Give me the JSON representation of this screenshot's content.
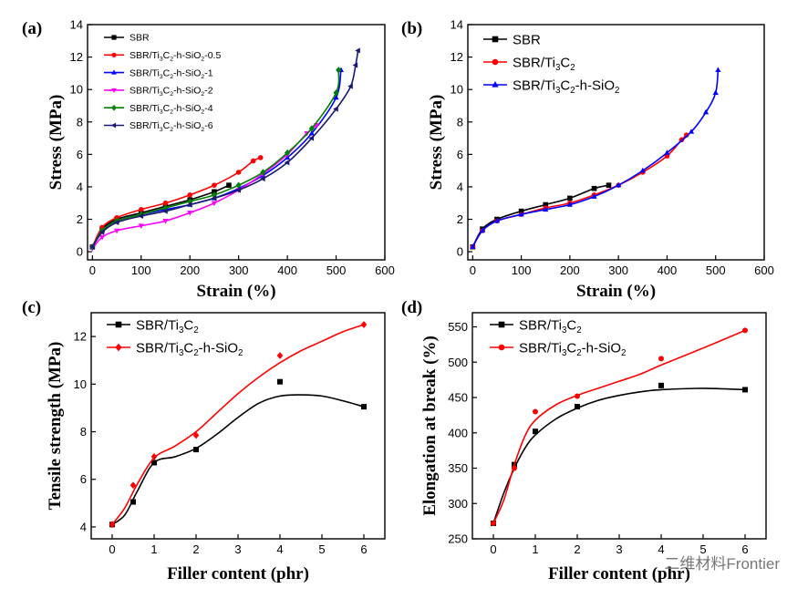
{
  "chart_data": [
    {
      "id": "a",
      "type": "line",
      "panel_label": "(a)",
      "xlabel": "Strain (%)",
      "ylabel": "Stress (MPa)",
      "xlim": [
        -10,
        600
      ],
      "ylim": [
        -0.5,
        14
      ],
      "xticks": [
        0,
        100,
        200,
        300,
        400,
        500,
        600
      ],
      "yticks": [
        0,
        2,
        4,
        6,
        8,
        10,
        12,
        14
      ],
      "legend_position": "top-left",
      "series": [
        {
          "name": "SBR",
          "color": "#000000",
          "marker": "square",
          "x": [
            0,
            20,
            50,
            100,
            150,
            200,
            250,
            280
          ],
          "y": [
            0.3,
            1.4,
            2.0,
            2.4,
            2.8,
            3.2,
            3.7,
            4.1
          ]
        },
        {
          "name": "SBR/Ti₃C₂-h-SiO₂-0.5",
          "color": "#ff0000",
          "marker": "circle",
          "x": [
            0,
            20,
            50,
            100,
            150,
            200,
            250,
            300,
            330,
            345
          ],
          "y": [
            0.3,
            1.5,
            2.1,
            2.6,
            3.0,
            3.5,
            4.1,
            4.9,
            5.6,
            5.8
          ]
        },
        {
          "name": "SBR/Ti₃C₂-h-SiO₂-1",
          "color": "#0000ff",
          "marker": "triangle-up",
          "x": [
            0,
            20,
            50,
            100,
            150,
            200,
            250,
            300,
            350,
            400,
            450,
            500,
            510
          ],
          "y": [
            0.3,
            1.3,
            1.9,
            2.3,
            2.6,
            2.9,
            3.3,
            3.9,
            4.7,
            5.8,
            7.3,
            9.5,
            11.2
          ]
        },
        {
          "name": "SBR/Ti₃C₂-h-SiO₂-2",
          "color": "#ff00ff",
          "marker": "triangle-down",
          "x": [
            0,
            20,
            50,
            100,
            150,
            200,
            250,
            300,
            350,
            400,
            440,
            460
          ],
          "y": [
            0.2,
            0.9,
            1.3,
            1.6,
            1.9,
            2.4,
            3.0,
            3.8,
            4.8,
            6.0,
            7.3,
            7.8
          ]
        },
        {
          "name": "SBR/Ti₃C₂-h-SiO₂-4",
          "color": "#008000",
          "marker": "diamond",
          "x": [
            0,
            20,
            50,
            100,
            150,
            200,
            250,
            300,
            350,
            400,
            450,
            500,
            505
          ],
          "y": [
            0.3,
            1.3,
            1.9,
            2.3,
            2.7,
            3.1,
            3.5,
            4.1,
            4.9,
            6.1,
            7.6,
            9.8,
            11.2
          ]
        },
        {
          "name": "SBR/Ti₃C₂-h-SiO₂-6",
          "color": "#191970",
          "marker": "triangle-left",
          "x": [
            0,
            20,
            50,
            100,
            150,
            200,
            250,
            300,
            350,
            400,
            450,
            500,
            530,
            540,
            545
          ],
          "y": [
            0.3,
            1.2,
            1.8,
            2.2,
            2.5,
            2.9,
            3.3,
            3.8,
            4.5,
            5.5,
            7.0,
            8.8,
            10.2,
            11.5,
            12.4
          ]
        }
      ]
    },
    {
      "id": "b",
      "type": "line",
      "panel_label": "(b)",
      "xlabel": "Strain (%)",
      "ylabel": "Stress (MPa)",
      "xlim": [
        -10,
        600
      ],
      "ylim": [
        -0.5,
        14
      ],
      "xticks": [
        0,
        100,
        200,
        300,
        400,
        500,
        600
      ],
      "yticks": [
        0,
        2,
        4,
        6,
        8,
        10,
        12,
        14
      ],
      "legend_position": "top-left",
      "series": [
        {
          "name": "SBR",
          "color": "#000000",
          "marker": "square",
          "x": [
            0,
            20,
            50,
            100,
            150,
            200,
            250,
            280
          ],
          "y": [
            0.3,
            1.4,
            2.0,
            2.5,
            2.9,
            3.3,
            3.9,
            4.1
          ]
        },
        {
          "name": "SBR/Ti₃C₂",
          "color": "#ff0000",
          "marker": "circle",
          "x": [
            0,
            20,
            50,
            100,
            150,
            200,
            250,
            300,
            350,
            400,
            430,
            440
          ],
          "y": [
            0.3,
            1.3,
            1.9,
            2.3,
            2.7,
            3.0,
            3.5,
            4.1,
            4.9,
            5.9,
            6.9,
            7.2
          ]
        },
        {
          "name": "SBR/Ti₃C₂-h-SiO₂",
          "color": "#0000ff",
          "marker": "triangle-up",
          "x": [
            0,
            20,
            50,
            100,
            150,
            200,
            250,
            300,
            350,
            400,
            450,
            480,
            500,
            505
          ],
          "y": [
            0.3,
            1.3,
            1.9,
            2.3,
            2.6,
            2.9,
            3.4,
            4.1,
            5.0,
            6.1,
            7.4,
            8.6,
            9.8,
            11.2
          ]
        }
      ]
    },
    {
      "id": "c",
      "type": "scatter",
      "panel_label": "(c)",
      "xlabel": "Filler content (phr)",
      "ylabel": "Tensile strength (MPa)",
      "xlim": [
        -0.5,
        6.5
      ],
      "ylim": [
        3.5,
        13.0
      ],
      "xticks": [
        0,
        1,
        2,
        3,
        4,
        5,
        6
      ],
      "yticks": [
        4,
        6,
        8,
        10,
        12
      ],
      "legend_position": "top-left",
      "series": [
        {
          "name": "SBR/Ti₃C₂",
          "color": "#000000",
          "marker": "square",
          "x": [
            0,
            0.5,
            1,
            2,
            4,
            6
          ],
          "y": [
            4.1,
            5.05,
            6.7,
            7.25,
            10.1,
            9.05
          ],
          "fit_x": [
            0,
            0.3,
            0.6,
            1,
            1.5,
            2,
            2.5,
            3,
            3.5,
            4,
            4.5,
            5,
            5.5,
            6
          ],
          "fit_y": [
            4.1,
            4.5,
            5.5,
            6.7,
            6.95,
            7.3,
            7.9,
            8.6,
            9.2,
            9.5,
            9.55,
            9.5,
            9.3,
            9.05
          ]
        },
        {
          "name": "SBR/Ti₃C₂-h-SiO₂",
          "color": "#ff0000",
          "marker": "diamond",
          "x": [
            0,
            0.5,
            1,
            2,
            4,
            6
          ],
          "y": [
            4.1,
            5.75,
            6.95,
            7.85,
            11.2,
            12.5
          ],
          "fit_x": [
            0,
            0.3,
            0.6,
            1,
            1.5,
            2,
            2.5,
            3,
            3.5,
            4,
            4.5,
            5,
            5.5,
            6
          ],
          "fit_y": [
            4.1,
            4.8,
            5.8,
            6.9,
            7.4,
            8.0,
            8.8,
            9.6,
            10.3,
            10.9,
            11.4,
            11.8,
            12.2,
            12.5
          ]
        }
      ]
    },
    {
      "id": "d",
      "type": "scatter",
      "panel_label": "(d)",
      "xlabel": "Filler content (phr)",
      "ylabel": "Elongation at break (%)",
      "xlim": [
        -0.5,
        6.5
      ],
      "ylim": [
        250,
        570
      ],
      "xticks": [
        0,
        1,
        2,
        3,
        4,
        5,
        6
      ],
      "yticks": [
        250,
        300,
        350,
        400,
        450,
        500,
        550
      ],
      "legend_position": "top-left",
      "series": [
        {
          "name": "SBR/Ti₃C₂",
          "color": "#000000",
          "marker": "square",
          "x": [
            0,
            0.5,
            1,
            2,
            4,
            6
          ],
          "y": [
            272,
            355,
            402,
            437,
            467,
            461
          ],
          "fit_x": [
            0,
            0.25,
            0.5,
            0.75,
            1,
            1.5,
            2,
            2.5,
            3,
            3.5,
            4,
            5,
            6
          ],
          "fit_y": [
            272,
            315,
            350,
            378,
            397,
            420,
            435,
            446,
            453,
            458,
            461,
            463,
            461
          ]
        },
        {
          "name": "SBR/Ti₃C₂-h-SiO₂",
          "color": "#ff0000",
          "marker": "circle",
          "x": [
            0,
            0.5,
            1,
            2,
            4,
            6
          ],
          "y": [
            272,
            350,
            430,
            452,
            505,
            545
          ],
          "fit_x": [
            0,
            0.25,
            0.5,
            0.75,
            1,
            1.5,
            2,
            2.5,
            3,
            3.5,
            4,
            5,
            6
          ],
          "fit_y": [
            272,
            305,
            355,
            395,
            418,
            440,
            453,
            463,
            473,
            483,
            496,
            520,
            545
          ]
        }
      ]
    }
  ],
  "watermark": "二维材料Frontier"
}
